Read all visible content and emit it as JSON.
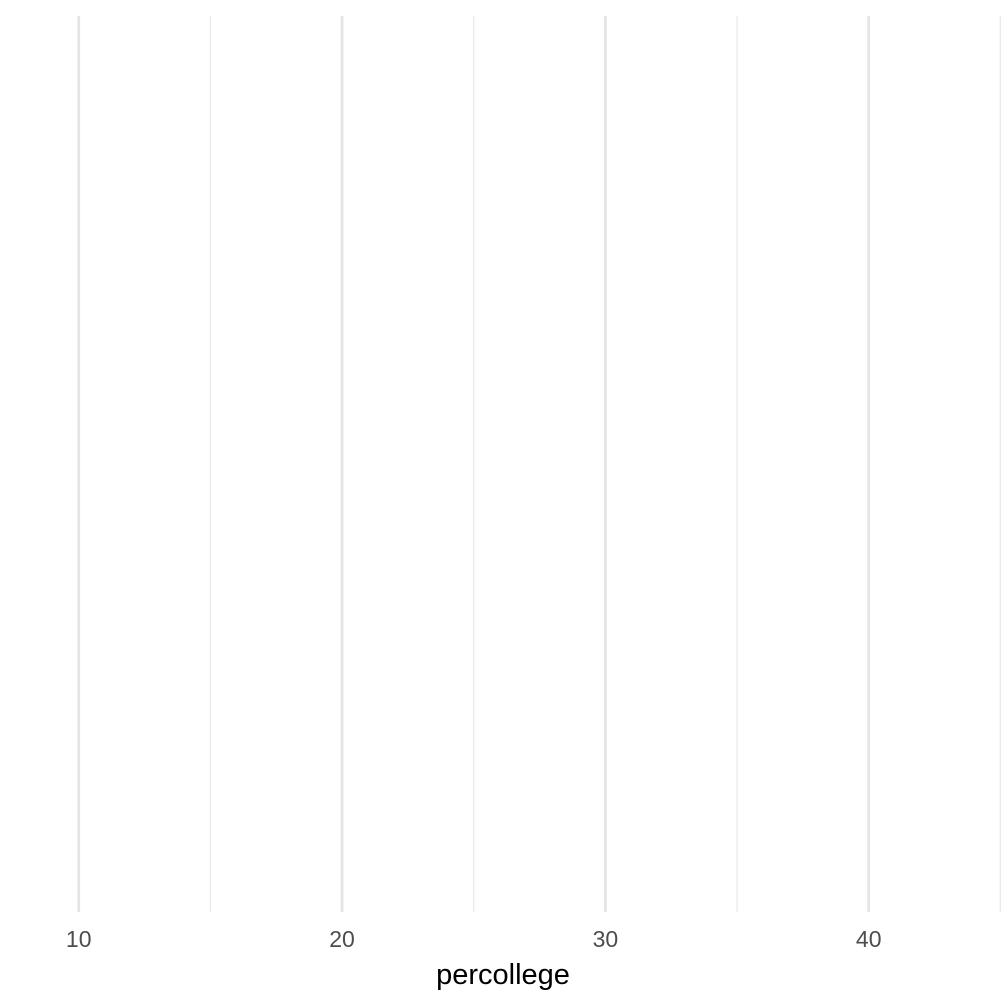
{
  "chart_data": {
    "type": "scatter",
    "title": "",
    "xlabel": "percollege",
    "ylabel": "",
    "xlim": [
      7.2,
      45.1
    ],
    "x_ticks": [
      10,
      20,
      30,
      40
    ],
    "x_tick_labels": [
      "10",
      "20",
      "30",
      "40"
    ],
    "x_minor_ticks": [
      15,
      25,
      35,
      45
    ],
    "grid": "vertical",
    "legend": "none",
    "series": []
  }
}
